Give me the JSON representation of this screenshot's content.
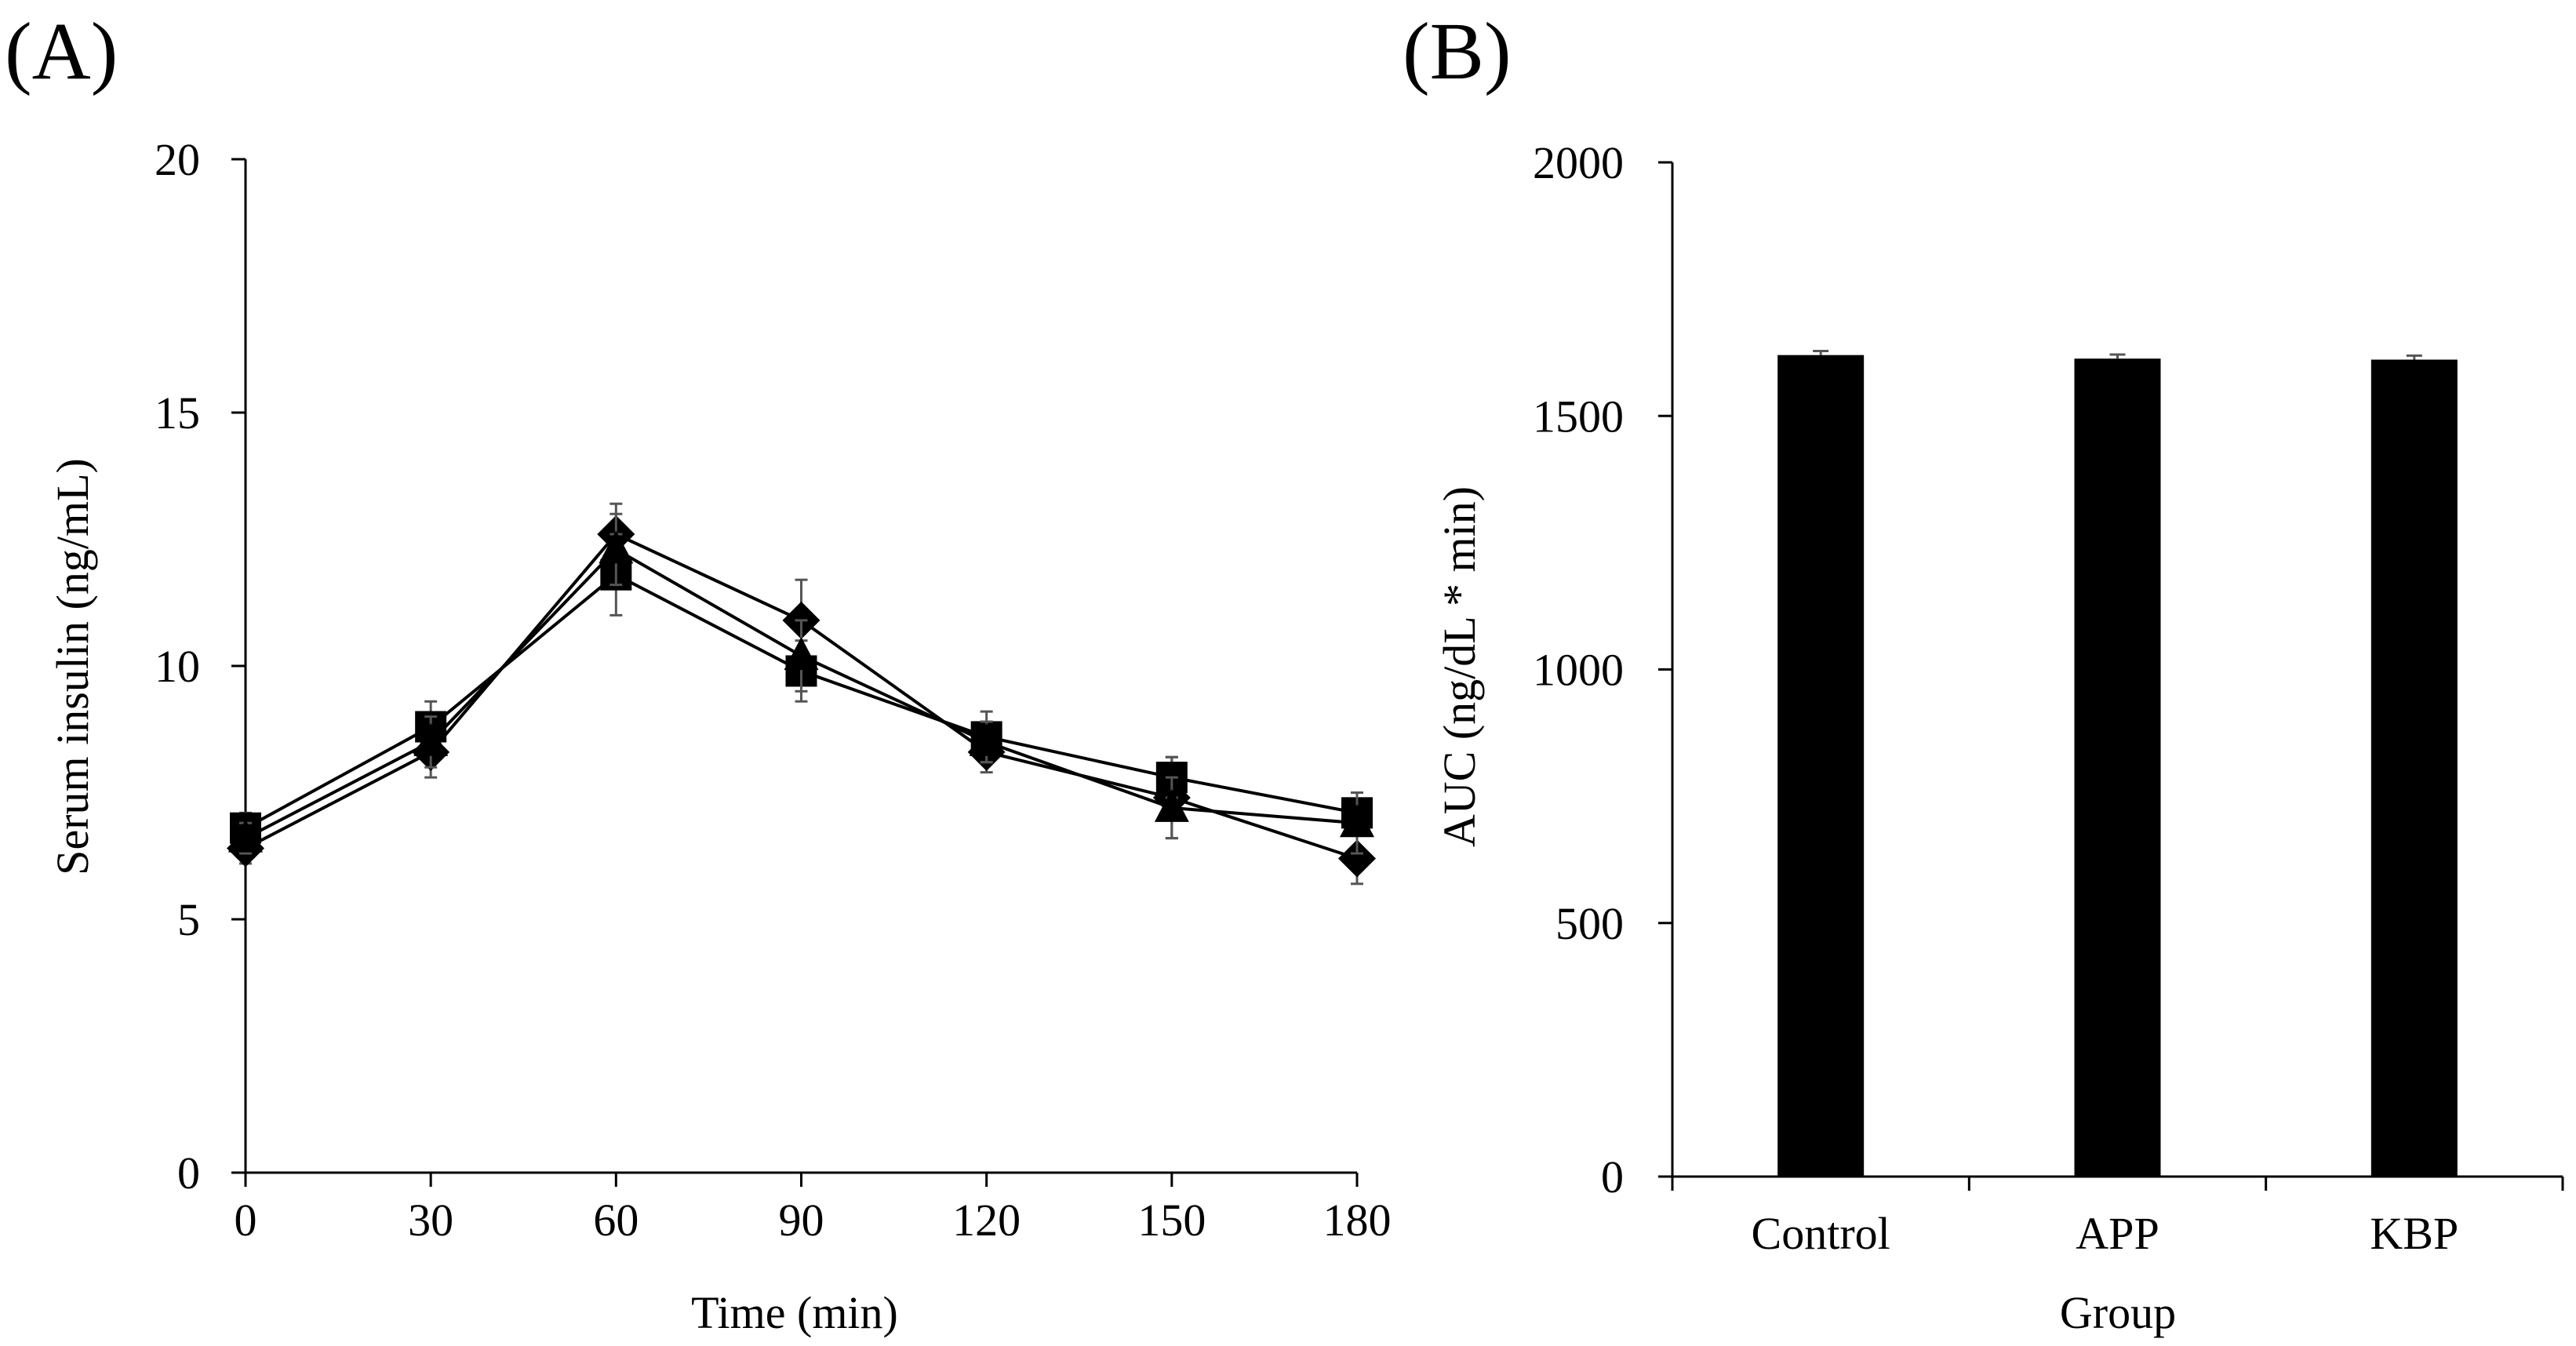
{
  "chart_data": [
    {
      "panel": "(A)",
      "type": "line",
      "xlabel": "Time (min)",
      "ylabel": "Serum insulin (ng/mL)",
      "x": [
        0,
        30,
        60,
        90,
        120,
        150,
        180
      ],
      "xticks": [
        "0",
        "30",
        "60",
        "90",
        "120",
        "150",
        "180"
      ],
      "ylim": [
        0,
        20
      ],
      "yticks": [
        "0",
        "5",
        "10",
        "15",
        "20"
      ],
      "grid": false,
      "legend": "none",
      "series": [
        {
          "marker": "diamond",
          "values": [
            6.4,
            8.3,
            12.6,
            10.9,
            8.3,
            7.4,
            6.2
          ],
          "errors": [
            0.3,
            0.5,
            0.6,
            0.8,
            0.4,
            0.8,
            0.5
          ]
        },
        {
          "marker": "square",
          "values": [
            6.8,
            8.8,
            11.8,
            9.9,
            8.6,
            7.8,
            7.1
          ],
          "errors": [
            0.3,
            0.5,
            0.8,
            0.6,
            0.5,
            0.4,
            0.4
          ]
        },
        {
          "marker": "triangle",
          "values": [
            6.6,
            8.5,
            12.3,
            10.2,
            8.5,
            7.2,
            6.9
          ],
          "errors": [
            0.3,
            0.5,
            0.7,
            0.7,
            0.4,
            0.6,
            0.6
          ]
        }
      ]
    },
    {
      "panel": "(B)",
      "type": "bar",
      "xlabel": "Group",
      "ylabel": "AUC (ng/dL * min)",
      "categories": [
        "Control",
        "APP",
        "KBP"
      ],
      "values": [
        1620,
        1613,
        1611
      ],
      "errors": [
        8,
        8,
        8
      ],
      "ylim": [
        0,
        2000
      ],
      "yticks": [
        "0",
        "500",
        "1000",
        "1500",
        "2000"
      ],
      "grid": false,
      "legend": "none"
    }
  ]
}
